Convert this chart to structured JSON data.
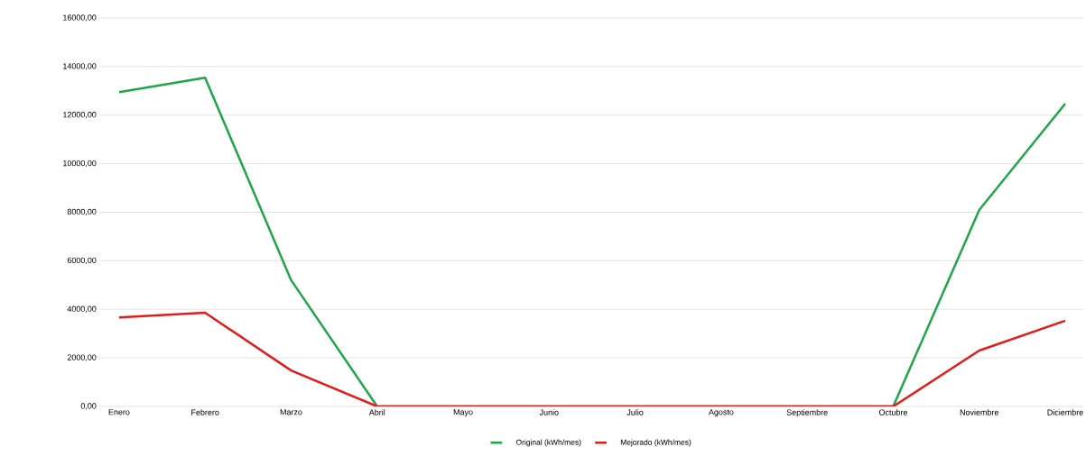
{
  "chart_data": {
    "type": "line",
    "categories": [
      "Enero",
      "Febrero",
      "Marzo",
      "Abril",
      "Mayo",
      "Junio",
      "Julio",
      "Agosto",
      "Septiembre",
      "Octubre",
      "Noviembre",
      "Diciembre"
    ],
    "series": [
      {
        "name": "Original (kWh/mes)",
        "color": "#1fa64a",
        "values": [
          12950,
          13540,
          5200,
          0,
          0,
          0,
          0,
          0,
          0,
          0,
          8090,
          12470
        ]
      },
      {
        "name": "Mejorado (kWh/mes)",
        "color": "#e31b1b",
        "values": [
          3670,
          3860,
          1480,
          0,
          0,
          0,
          0,
          0,
          0,
          0,
          2300,
          3530
        ]
      }
    ],
    "ylim": [
      0,
      16000
    ],
    "yticks": [
      {
        "value": 0,
        "label": "0,00"
      },
      {
        "value": 2000,
        "label": "2000,00"
      },
      {
        "value": 4000,
        "label": "4000,00"
      },
      {
        "value": 6000,
        "label": "6000,00"
      },
      {
        "value": 8000,
        "label": "8000,00"
      },
      {
        "value": 10000,
        "label": "10000,00"
      },
      {
        "value": 12000,
        "label": "12000,00"
      },
      {
        "value": 14000,
        "label": "14000,00"
      },
      {
        "value": 16000,
        "label": "16000,00"
      }
    ],
    "grid": "y",
    "legend": "bottom",
    "marker": "none",
    "line_style": "solid"
  }
}
